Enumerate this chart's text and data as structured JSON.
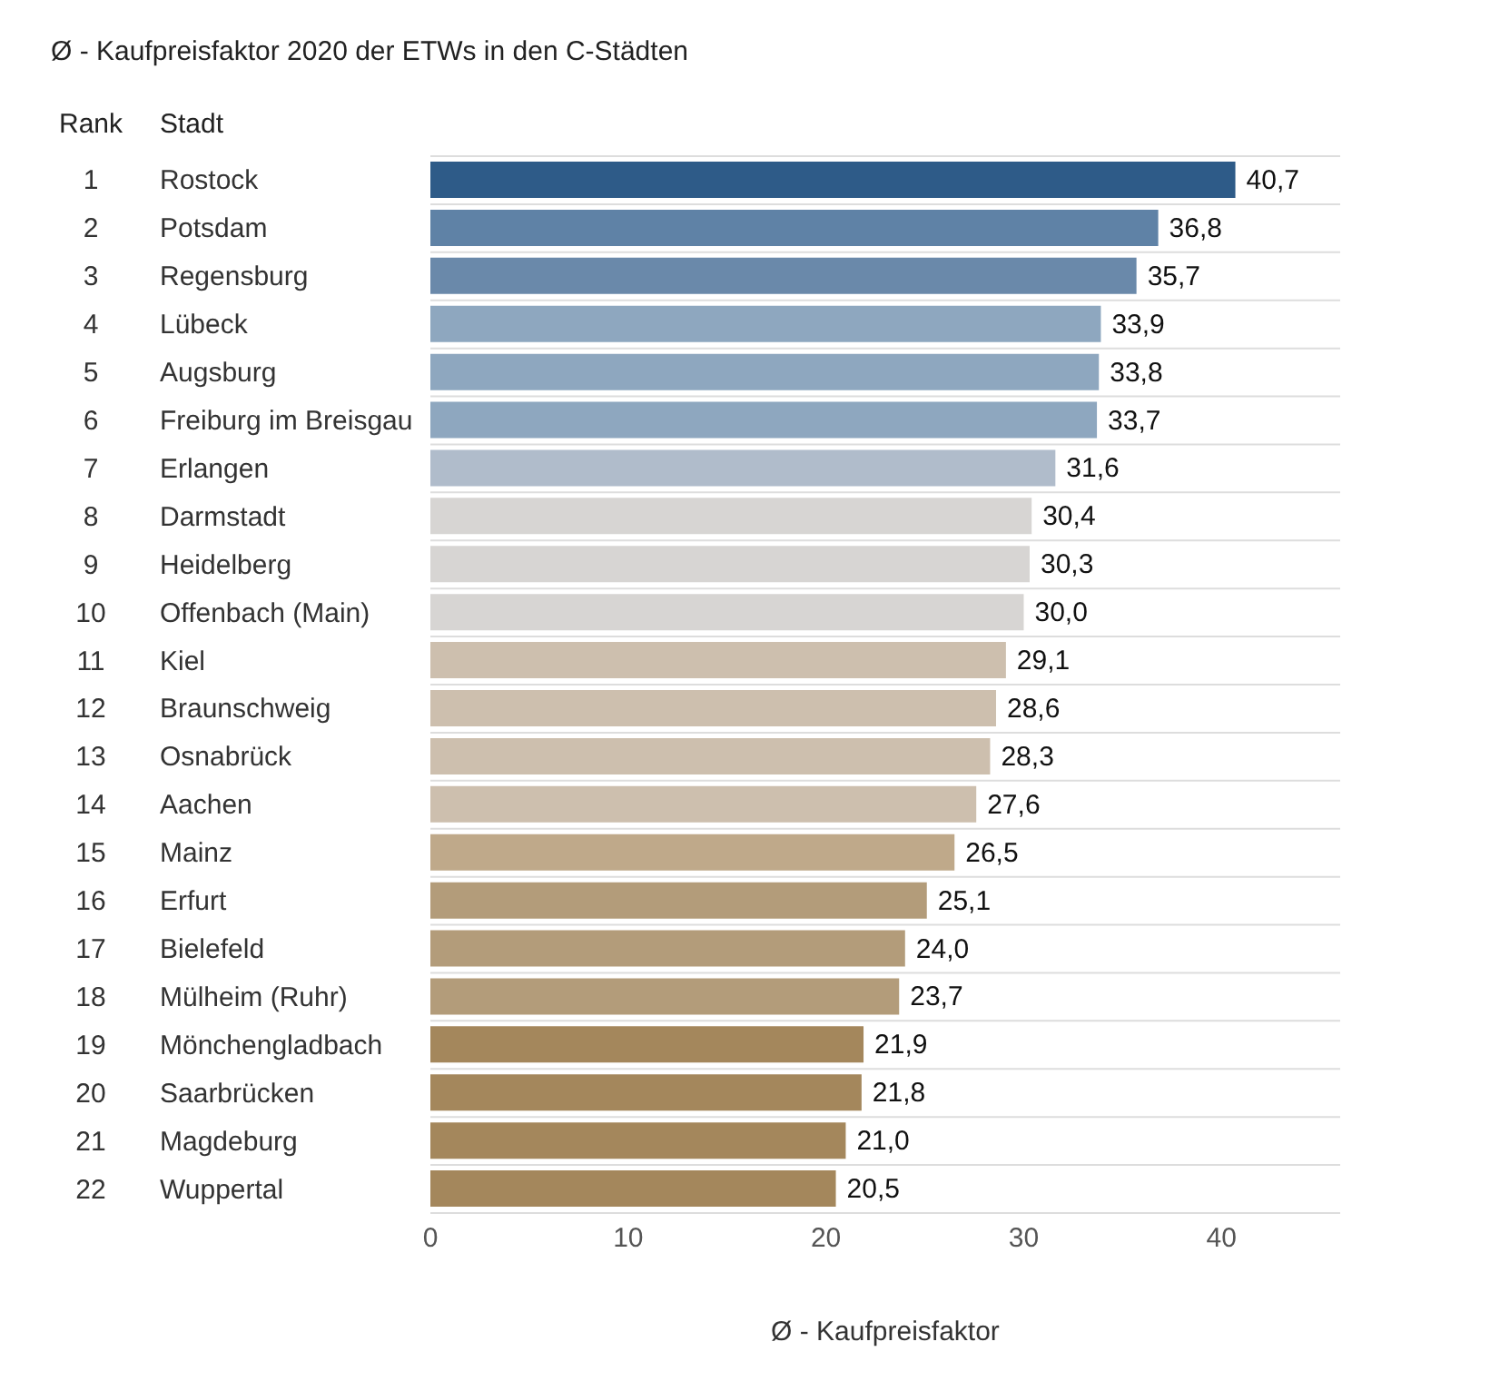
{
  "chart_data": {
    "type": "bar",
    "orientation": "horizontal",
    "title": "Ø - Kaufpreisfaktor 2020 der ETWs in den C-Städten",
    "xlabel": "Ø - Kaufpreisfaktor",
    "annotations": [
      "Rank",
      "Stadt"
    ],
    "categories": [
      "Rostock",
      "Potsdam",
      "Regensburg",
      "Lübeck",
      "Augsburg",
      "Freiburg im Breisgau",
      "Erlangen",
      "Darmstadt",
      "Heidelberg",
      "Offenbach (Main)",
      "Kiel",
      "Braunschweig",
      "Osnabrück",
      "Aachen",
      "Mainz",
      "Erfurt",
      "Bielefeld",
      "Mülheim (Ruhr)",
      "Mönchengladbach",
      "Saarbrücken",
      "Magdeburg",
      "Wuppertal"
    ],
    "y2_categories": [
      "1",
      "2",
      "3",
      "4",
      "5",
      "6",
      "7",
      "8",
      "9",
      "10",
      "11",
      "12",
      "13",
      "14",
      "15",
      "16",
      "17",
      "18",
      "19",
      "20",
      "21",
      "22"
    ],
    "values": [
      40.7,
      36.8,
      35.7,
      33.9,
      33.8,
      33.7,
      31.6,
      30.4,
      30.3,
      30.0,
      29.1,
      28.6,
      28.3,
      27.6,
      26.5,
      25.1,
      24.0,
      23.7,
      21.9,
      21.8,
      21.0,
      20.5
    ],
    "value_labels": [
      "40,7",
      "36,8",
      "35,7",
      "33,9",
      "33,8",
      "33,7",
      "31,6",
      "30,4",
      "30,3",
      "30,0",
      "29,1",
      "28,6",
      "28,3",
      "27,6",
      "26,5",
      "25,1",
      "24,0",
      "23,7",
      "21,9",
      "21,8",
      "21,0",
      "20,5"
    ],
    "colors": [
      "#2e5b88",
      "#5f82a6",
      "#6a89aa",
      "#8ea7bf",
      "#8ea7bf",
      "#8ea7bf",
      "#b0bccb",
      "#d7d5d3",
      "#d7d5d3",
      "#d7d5d3",
      "#cdbfae",
      "#cdbfae",
      "#cdbfae",
      "#cdbfae",
      "#bfa98a",
      "#b39c7a",
      "#b39c7a",
      "#b39c7a",
      "#a4875c",
      "#a4875c",
      "#a4875c",
      "#a4875c"
    ],
    "xlim": [
      0,
      46
    ],
    "xticks": [
      0,
      10,
      20,
      30,
      40
    ],
    "grid": "y"
  }
}
